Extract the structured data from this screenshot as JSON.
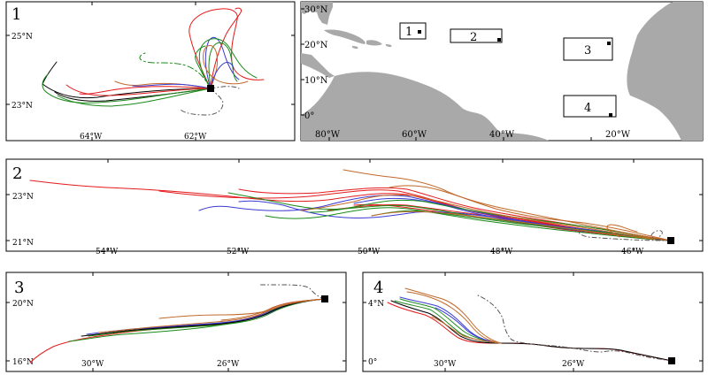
{
  "colors": {
    "red": "#e41a1c",
    "blue": "#3b3bd6",
    "green": "#1a8a1a",
    "brown": "#c0692a",
    "black": "#000000",
    "gray": "#555555",
    "land": "#a9a9a9"
  },
  "panel1": {
    "number": "1",
    "lat_labels": [
      "25°N",
      "23°N"
    ],
    "lon_labels": [
      "64°W",
      "62°W"
    ]
  },
  "map": {
    "lat_labels": [
      "30°N",
      "20°N",
      "10°N",
      "0°"
    ],
    "lon_labels": [
      "80°W",
      "60°W",
      "40°W",
      "20°W"
    ],
    "box_labels": [
      "1",
      "2",
      "3",
      "4"
    ]
  },
  "panel2": {
    "number": "2",
    "lat_labels": [
      "23°N",
      "21°N"
    ],
    "lon_labels": [
      "54°W",
      "52°W",
      "50°W",
      "48°W",
      "46°W"
    ]
  },
  "panel3": {
    "number": "3",
    "lat_labels": [
      "20°N",
      "16°N"
    ],
    "lon_labels": [
      "30°W",
      "26°W"
    ]
  },
  "panel4": {
    "number": "4",
    "lat_labels": [
      "4°N",
      "0°"
    ],
    "lon_labels": [
      "30°W",
      "26°W"
    ]
  }
}
